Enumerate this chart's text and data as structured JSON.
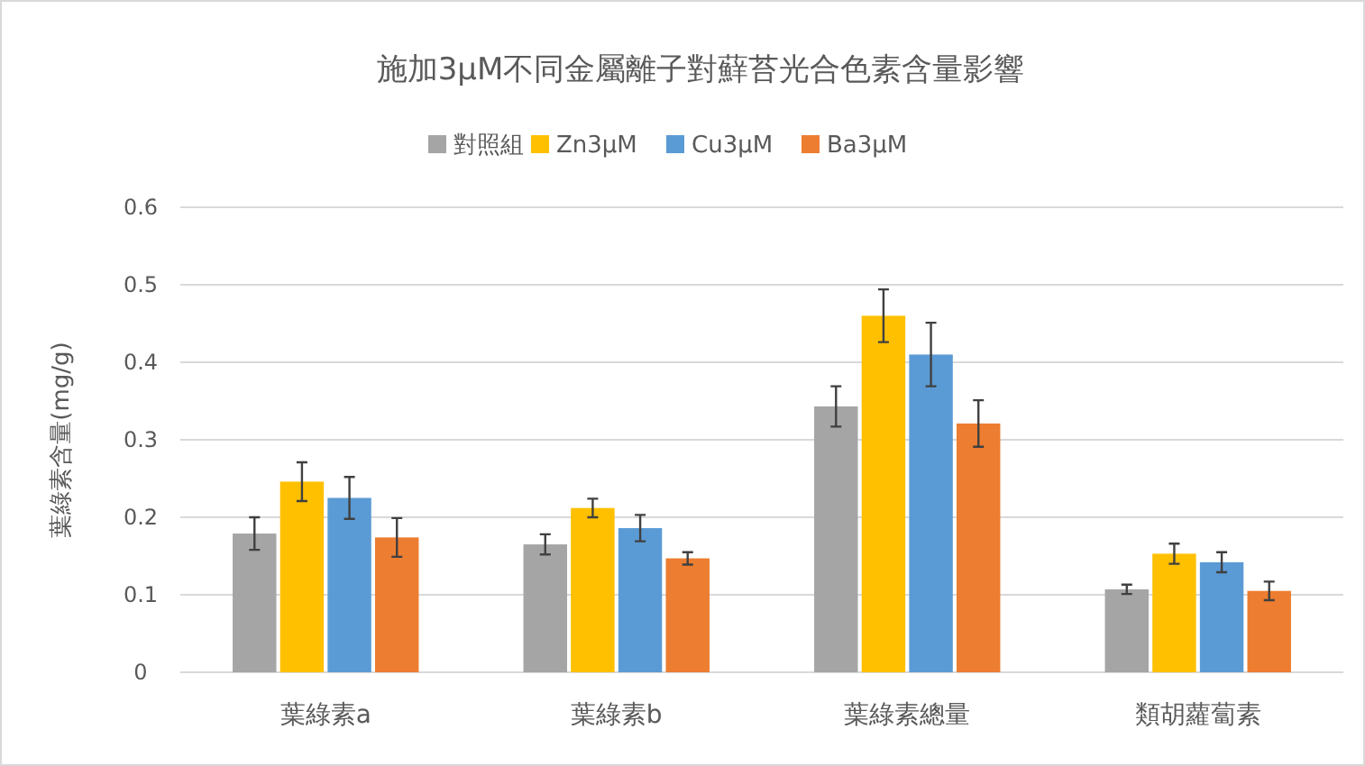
{
  "chart_data": {
    "type": "bar",
    "title": "施加3μM不同金屬離子對蘚苔光合色素含量影響",
    "ylabel": "葉綠素含量(mg/g)",
    "categories": [
      "葉綠素a",
      "葉綠素b",
      "葉綠素總量",
      "類胡蘿蔔素"
    ],
    "series": [
      {
        "name": "對照組",
        "color": "#a5a5a5",
        "values": [
          0.179,
          0.165,
          0.343,
          0.107
        ],
        "errors": [
          0.021,
          0.013,
          0.026,
          0.006
        ]
      },
      {
        "name": "Zn3μM",
        "color": "#ffc000",
        "values": [
          0.246,
          0.212,
          0.46,
          0.153
        ],
        "errors": [
          0.025,
          0.012,
          0.034,
          0.013
        ]
      },
      {
        "name": "Cu3μM",
        "color": "#5b9bd5",
        "values": [
          0.225,
          0.186,
          0.41,
          0.142
        ],
        "errors": [
          0.027,
          0.017,
          0.041,
          0.013
        ]
      },
      {
        "name": "Ba3μM",
        "color": "#ed7d31",
        "values": [
          0.174,
          0.147,
          0.321,
          0.105
        ],
        "errors": [
          0.025,
          0.008,
          0.03,
          0.012
        ]
      }
    ],
    "ylim": [
      0,
      0.6
    ],
    "yticks": [
      0,
      0.1,
      0.2,
      0.3,
      0.4,
      0.5,
      0.6
    ],
    "grid": "y",
    "legend": "top"
  }
}
